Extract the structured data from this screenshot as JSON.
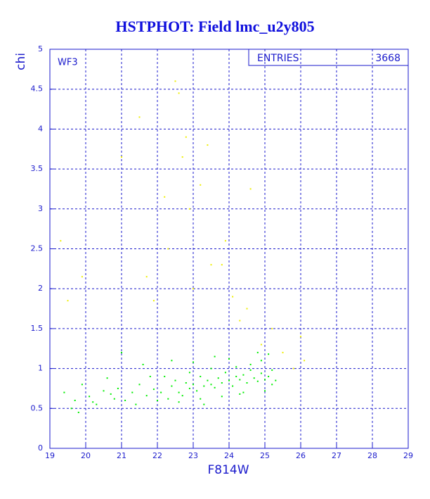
{
  "chart_data": {
    "type": "scatter",
    "title": "HSTPHOT: Field lmc_u2y805",
    "x_label": "F814W",
    "y_label": "chi",
    "panel_label": "WF3",
    "stats": {
      "label": "ENTRIES",
      "value": 3668
    },
    "xlim": [
      19,
      29
    ],
    "ylim": [
      0,
      5
    ],
    "xticks": [
      19,
      20,
      21,
      22,
      23,
      24,
      25,
      26,
      27,
      28,
      29
    ],
    "yticks": [
      0,
      0.5,
      1,
      1.5,
      2,
      2.5,
      3,
      3.5,
      4,
      4.5,
      5
    ],
    "grid": true,
    "series": [
      {
        "color": "#00ee00",
        "x": [
          19.4,
          19.7,
          19.9,
          20.1,
          20.3,
          20.5,
          20.7,
          20.9,
          21.1,
          21.3,
          21.5,
          21.7,
          21.9,
          22.1,
          22.2,
          22.3,
          22.4,
          22.5,
          22.6,
          22.7,
          22.8,
          22.9,
          23.0,
          23.1,
          23.2,
          23.3,
          23.4,
          23.5,
          23.6,
          23.7,
          23.8,
          23.9,
          24.0,
          24.1,
          24.2,
          24.3,
          24.4,
          24.5,
          24.6,
          24.7,
          24.8,
          24.9,
          25.0,
          25.1,
          25.2,
          25.3,
          19.6,
          20.2,
          20.8,
          21.4,
          22.0,
          22.6,
          23.2,
          23.8,
          24.4,
          25.0,
          24.6,
          24.9,
          25.2,
          23.5,
          24.2,
          22.9,
          21.8,
          20.6,
          19.8,
          21.0,
          21.6,
          22.4,
          23.0,
          23.6,
          24.0,
          24.8,
          25.1,
          24.3,
          23.3
        ],
        "values": [
          0.7,
          0.6,
          0.8,
          0.65,
          0.55,
          0.72,
          0.68,
          0.75,
          0.6,
          0.7,
          0.8,
          0.66,
          0.74,
          0.7,
          0.9,
          0.62,
          0.78,
          0.85,
          0.7,
          0.66,
          0.82,
          0.75,
          0.8,
          0.72,
          0.9,
          0.78,
          0.85,
          0.8,
          0.76,
          0.88,
          0.82,
          0.95,
          0.85,
          0.78,
          0.9,
          0.86,
          0.92,
          0.82,
          0.98,
          0.88,
          0.84,
          0.94,
          0.86,
          0.9,
          0.8,
          0.85,
          0.5,
          0.58,
          0.62,
          0.55,
          0.6,
          0.58,
          0.62,
          0.65,
          0.7,
          0.72,
          1.05,
          1.1,
          0.98,
          1.0,
          1.02,
          0.95,
          0.9,
          0.88,
          0.45,
          1.2,
          1.05,
          1.1,
          1.08,
          1.15,
          1.12,
          1.2,
          1.18,
          0.68,
          0.55
        ]
      },
      {
        "color": "#eeee00",
        "x": [
          19.3,
          19.5,
          19.9,
          21.0,
          21.5,
          21.7,
          22.2,
          22.5,
          22.6,
          22.7,
          22.9,
          23.2,
          23.4,
          23.5,
          23.8,
          24.1,
          24.3,
          24.6,
          24.9,
          25.2,
          25.5,
          26.0,
          26.1,
          22.3,
          23.0,
          23.9,
          24.5,
          22.8,
          21.9,
          25.8
        ],
        "values": [
          2.6,
          1.85,
          2.15,
          3.65,
          4.15,
          2.15,
          3.15,
          4.6,
          4.45,
          3.65,
          3.0,
          3.3,
          3.8,
          2.3,
          2.3,
          1.9,
          1.6,
          3.25,
          1.3,
          1.5,
          1.2,
          1.4,
          1.1,
          2.5,
          2.0,
          2.6,
          1.75,
          3.9,
          1.85,
          1.0
        ]
      }
    ]
  }
}
